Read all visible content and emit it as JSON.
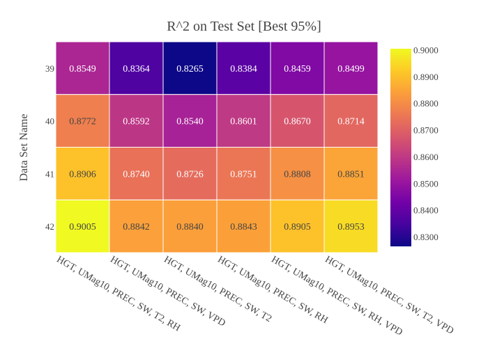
{
  "chart_data": {
    "type": "heatmap",
    "title": "R^2 on Test Set [Best 95%]",
    "ylabel": "Data Set Name",
    "xlabel": "",
    "x_categories": [
      "HGT, UMag10, PREC, SW, T2, RH",
      "HGT, UMag10, PREC, SW, VPD",
      "HGT, UMag10, PREC, SW, T2",
      "HGT, UMag10, PREC, SW, RH",
      "HGT, UMag10, PREC, SW, RH, VPD",
      "HGT, UMag10, PREC, SW, T2, VPD"
    ],
    "y_categories": [
      "39",
      "40",
      "41",
      "42"
    ],
    "values": [
      [
        0.8549,
        0.8364,
        0.8265,
        0.8384,
        0.8459,
        0.8499
      ],
      [
        0.8772,
        0.8592,
        0.854,
        0.8601,
        0.867,
        0.8714
      ],
      [
        0.8906,
        0.874,
        0.8726,
        0.8751,
        0.8808,
        0.8851
      ],
      [
        0.9005,
        0.8842,
        0.884,
        0.8843,
        0.8905,
        0.8953
      ]
    ],
    "value_labels": [
      [
        "0.8549",
        "0.8364",
        "0.8265",
        "0.8384",
        "0.8459",
        "0.8499"
      ],
      [
        "0.8772",
        "0.8592",
        "0.8540",
        "0.8601",
        "0.8670",
        "0.8714"
      ],
      [
        "0.8906",
        "0.8740",
        "0.8726",
        "0.8751",
        "0.8808",
        "0.8851"
      ],
      [
        "0.9005",
        "0.8842",
        "0.8840",
        "0.8843",
        "0.8905",
        "0.8953"
      ]
    ],
    "colorscale": "plasma",
    "zmin": 0.8265,
    "zmax": 0.9005,
    "colorbar_ticks": [
      "0.8300",
      "0.8400",
      "0.8500",
      "0.8600",
      "0.8700",
      "0.8800",
      "0.8900",
      "0.9000"
    ],
    "colorbar_tick_values": [
      0.83,
      0.84,
      0.85,
      0.86,
      0.87,
      0.88,
      0.89,
      0.9
    ]
  }
}
